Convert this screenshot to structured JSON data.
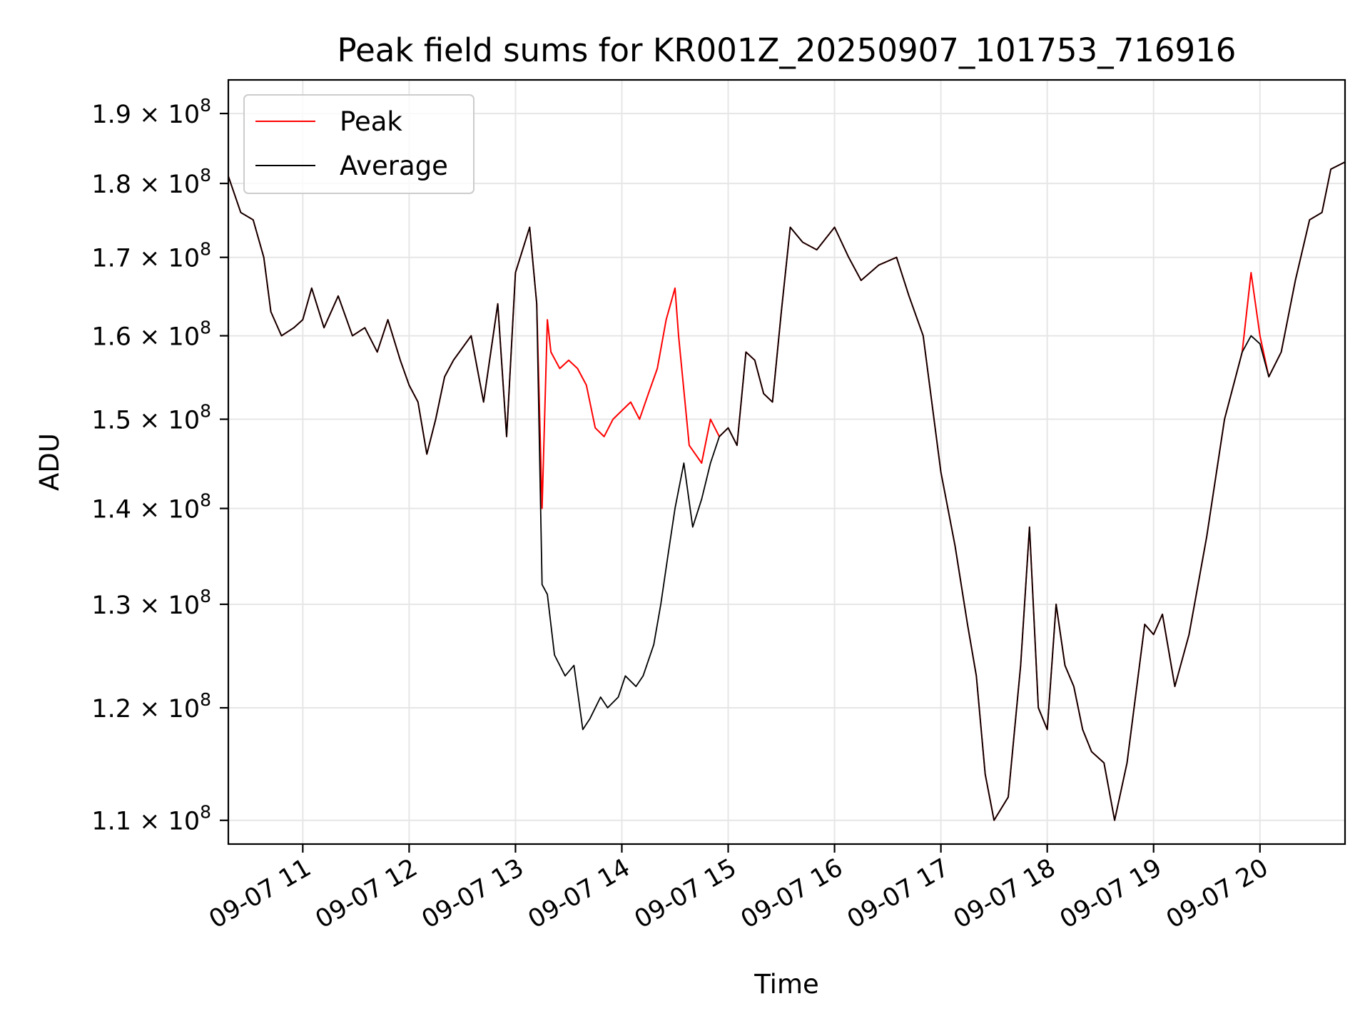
{
  "chart_data": {
    "type": "line",
    "title": "Peak field sums for KR001Z_20250907_101753_716916",
    "xlabel": "Time",
    "ylabel": "ADU",
    "x_range": [
      "09-07 10:18",
      "09-07 20:48"
    ],
    "ylim": [
      108000000,
      195000000
    ],
    "y_scale": "log",
    "x_ticks": [
      {
        "label": "09-07 11",
        "hour": 11
      },
      {
        "label": "09-07 12",
        "hour": 12
      },
      {
        "label": "09-07 13",
        "hour": 13
      },
      {
        "label": "09-07 14",
        "hour": 14
      },
      {
        "label": "09-07 15",
        "hour": 15
      },
      {
        "label": "09-07 16",
        "hour": 16
      },
      {
        "label": "09-07 17",
        "hour": 17
      },
      {
        "label": "09-07 18",
        "hour": 18
      },
      {
        "label": "09-07 19",
        "hour": 19
      },
      {
        "label": "09-07 20",
        "hour": 20
      }
    ],
    "y_ticks": [
      {
        "mantissa": "1.1",
        "value": 110000000
      },
      {
        "mantissa": "1.2",
        "value": 120000000
      },
      {
        "mantissa": "1.3",
        "value": 130000000
      },
      {
        "mantissa": "1.4",
        "value": 140000000
      },
      {
        "mantissa": "1.5",
        "value": 150000000
      },
      {
        "mantissa": "1.6",
        "value": 160000000
      },
      {
        "mantissa": "1.7",
        "value": 170000000
      },
      {
        "mantissa": "1.8",
        "value": 180000000
      },
      {
        "mantissa": "1.9",
        "value": 190000000
      }
    ],
    "y_tick_suffix": "× 10",
    "y_tick_exponent": "8",
    "grid": true,
    "legend_position": "top-left",
    "series": [
      {
        "name": "Peak",
        "color": "#ff0000",
        "points": [
          [
            "10:18",
            181
          ],
          [
            "10:25",
            176
          ],
          [
            "10:32",
            175
          ],
          [
            "10:38",
            170
          ],
          [
            "10:42",
            163
          ],
          [
            "10:48",
            160
          ],
          [
            "10:55",
            161
          ],
          [
            "11:00",
            162
          ],
          [
            "11:05",
            166
          ],
          [
            "11:12",
            161
          ],
          [
            "11:20",
            165
          ],
          [
            "11:28",
            160
          ],
          [
            "11:35",
            161
          ],
          [
            "11:42",
            158
          ],
          [
            "11:48",
            162
          ],
          [
            "11:55",
            157
          ],
          [
            "12:00",
            154
          ],
          [
            "12:05",
            152
          ],
          [
            "12:10",
            146
          ],
          [
            "12:15",
            150
          ],
          [
            "12:20",
            155
          ],
          [
            "12:25",
            157
          ],
          [
            "12:35",
            160
          ],
          [
            "12:42",
            152
          ],
          [
            "12:50",
            164
          ],
          [
            "12:55",
            148
          ],
          [
            "13:00",
            168
          ],
          [
            "13:08",
            174
          ],
          [
            "13:12",
            164
          ],
          [
            "13:15",
            140
          ],
          [
            "13:18",
            162
          ],
          [
            "13:20",
            158
          ],
          [
            "13:25",
            156
          ],
          [
            "13:30",
            157
          ],
          [
            "13:35",
            156
          ],
          [
            "13:40",
            154
          ],
          [
            "13:45",
            149
          ],
          [
            "13:50",
            148
          ],
          [
            "13:55",
            150
          ],
          [
            "14:00",
            151
          ],
          [
            "14:05",
            152
          ],
          [
            "14:10",
            150
          ],
          [
            "14:15",
            153
          ],
          [
            "14:20",
            156
          ],
          [
            "14:25",
            162
          ],
          [
            "14:30",
            166
          ],
          [
            "14:32",
            160
          ],
          [
            "14:38",
            147
          ],
          [
            "14:45",
            145
          ],
          [
            "14:50",
            150
          ],
          [
            "14:55",
            148
          ],
          [
            "15:00",
            149
          ],
          [
            "15:05",
            147
          ],
          [
            "15:10",
            158
          ],
          [
            "15:15",
            157
          ],
          [
            "15:20",
            153
          ],
          [
            "15:25",
            152
          ],
          [
            "15:30",
            163
          ],
          [
            "15:35",
            174
          ],
          [
            "15:42",
            172
          ],
          [
            "15:50",
            171
          ],
          [
            "16:00",
            174
          ],
          [
            "16:08",
            170
          ],
          [
            "16:15",
            167
          ],
          [
            "16:25",
            169
          ],
          [
            "16:35",
            170
          ],
          [
            "16:42",
            165
          ],
          [
            "16:50",
            160
          ],
          [
            "17:00",
            144
          ],
          [
            "17:08",
            136
          ],
          [
            "17:15",
            128
          ],
          [
            "17:20",
            123
          ],
          [
            "17:25",
            114
          ],
          [
            "17:30",
            110
          ],
          [
            "17:38",
            112
          ],
          [
            "17:45",
            124
          ],
          [
            "17:50",
            138
          ],
          [
            "17:55",
            120
          ],
          [
            "18:00",
            118
          ],
          [
            "18:05",
            130
          ],
          [
            "18:10",
            124
          ],
          [
            "18:15",
            122
          ],
          [
            "18:20",
            118
          ],
          [
            "18:25",
            116
          ],
          [
            "18:32",
            115
          ],
          [
            "18:38",
            110
          ],
          [
            "18:45",
            115
          ],
          [
            "18:55",
            128
          ],
          [
            "19:00",
            127
          ],
          [
            "19:05",
            129
          ],
          [
            "19:12",
            122
          ],
          [
            "19:20",
            127
          ],
          [
            "19:30",
            137
          ],
          [
            "19:40",
            150
          ],
          [
            "19:50",
            158
          ],
          [
            "19:55",
            168
          ],
          [
            "20:00",
            160
          ],
          [
            "20:05",
            155
          ],
          [
            "20:12",
            158
          ],
          [
            "20:20",
            167
          ],
          [
            "20:28",
            175
          ],
          [
            "20:35",
            176
          ],
          [
            "20:40",
            182
          ],
          [
            "20:48",
            183
          ]
        ]
      },
      {
        "name": "Average",
        "color": "#000000",
        "points": [
          [
            "10:18",
            181
          ],
          [
            "10:25",
            176
          ],
          [
            "10:32",
            175
          ],
          [
            "10:38",
            170
          ],
          [
            "10:42",
            163
          ],
          [
            "10:48",
            160
          ],
          [
            "10:55",
            161
          ],
          [
            "11:00",
            162
          ],
          [
            "11:05",
            166
          ],
          [
            "11:12",
            161
          ],
          [
            "11:20",
            165
          ],
          [
            "11:28",
            160
          ],
          [
            "11:35",
            161
          ],
          [
            "11:42",
            158
          ],
          [
            "11:48",
            162
          ],
          [
            "11:55",
            157
          ],
          [
            "12:00",
            154
          ],
          [
            "12:05",
            152
          ],
          [
            "12:10",
            146
          ],
          [
            "12:15",
            150
          ],
          [
            "12:20",
            155
          ],
          [
            "12:25",
            157
          ],
          [
            "12:35",
            160
          ],
          [
            "12:42",
            152
          ],
          [
            "12:50",
            164
          ],
          [
            "12:55",
            148
          ],
          [
            "13:00",
            168
          ],
          [
            "13:08",
            174
          ],
          [
            "13:12",
            164
          ],
          [
            "13:15",
            132
          ],
          [
            "13:18",
            131
          ],
          [
            "13:22",
            125
          ],
          [
            "13:28",
            123
          ],
          [
            "13:33",
            124
          ],
          [
            "13:38",
            118
          ],
          [
            "13:42",
            119
          ],
          [
            "13:48",
            121
          ],
          [
            "13:52",
            120
          ],
          [
            "13:58",
            121
          ],
          [
            "14:02",
            123
          ],
          [
            "14:08",
            122
          ],
          [
            "14:12",
            123
          ],
          [
            "14:18",
            126
          ],
          [
            "14:22",
            130
          ],
          [
            "14:26",
            135
          ],
          [
            "14:30",
            140
          ],
          [
            "14:35",
            145
          ],
          [
            "14:40",
            138
          ],
          [
            "14:45",
            141
          ],
          [
            "14:50",
            145
          ],
          [
            "14:55",
            148
          ],
          [
            "15:00",
            149
          ],
          [
            "15:05",
            147
          ],
          [
            "15:10",
            158
          ],
          [
            "15:15",
            157
          ],
          [
            "15:20",
            153
          ],
          [
            "15:25",
            152
          ],
          [
            "15:30",
            163
          ],
          [
            "15:35",
            174
          ],
          [
            "15:42",
            172
          ],
          [
            "15:50",
            171
          ],
          [
            "16:00",
            174
          ],
          [
            "16:08",
            170
          ],
          [
            "16:15",
            167
          ],
          [
            "16:25",
            169
          ],
          [
            "16:35",
            170
          ],
          [
            "16:42",
            165
          ],
          [
            "16:50",
            160
          ],
          [
            "17:00",
            144
          ],
          [
            "17:08",
            136
          ],
          [
            "17:15",
            128
          ],
          [
            "17:20",
            123
          ],
          [
            "17:25",
            114
          ],
          [
            "17:30",
            110
          ],
          [
            "17:38",
            112
          ],
          [
            "17:45",
            124
          ],
          [
            "17:50",
            138
          ],
          [
            "17:55",
            120
          ],
          [
            "18:00",
            118
          ],
          [
            "18:05",
            130
          ],
          [
            "18:10",
            124
          ],
          [
            "18:15",
            122
          ],
          [
            "18:20",
            118
          ],
          [
            "18:25",
            116
          ],
          [
            "18:32",
            115
          ],
          [
            "18:38",
            110
          ],
          [
            "18:45",
            115
          ],
          [
            "18:55",
            128
          ],
          [
            "19:00",
            127
          ],
          [
            "19:05",
            129
          ],
          [
            "19:12",
            122
          ],
          [
            "19:20",
            127
          ],
          [
            "19:30",
            137
          ],
          [
            "19:40",
            150
          ],
          [
            "19:50",
            158
          ],
          [
            "19:55",
            160
          ],
          [
            "20:00",
            159
          ],
          [
            "20:05",
            155
          ],
          [
            "20:12",
            158
          ],
          [
            "20:20",
            167
          ],
          [
            "20:28",
            175
          ],
          [
            "20:35",
            176
          ],
          [
            "20:40",
            182
          ],
          [
            "20:48",
            183
          ]
        ]
      }
    ]
  }
}
